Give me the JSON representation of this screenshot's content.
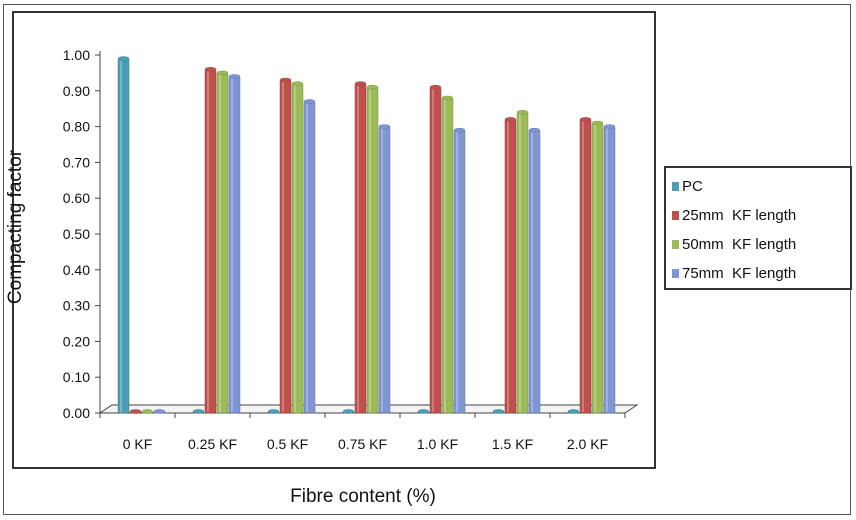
{
  "chart_data": {
    "type": "bar",
    "categories": [
      "0 KF",
      "0.25 KF",
      "0.5 KF",
      "0.75 KF",
      "1.0 KF",
      "1.5 KF",
      "2.0 KF"
    ],
    "series": [
      {
        "name": "PC",
        "color": "#4A9FB5",
        "values": [
          0.99,
          0,
          0,
          0,
          0,
          0,
          0
        ]
      },
      {
        "name": "25mm  KF length",
        "color": "#C0504D",
        "values": [
          0,
          0.96,
          0.93,
          0.92,
          0.91,
          0.82,
          0.82
        ]
      },
      {
        "name": "50mm  KF length",
        "color": "#9BBB59",
        "values": [
          0,
          0.95,
          0.92,
          0.91,
          0.88,
          0.84,
          0.81
        ]
      },
      {
        "name": "75mm  KF length",
        "color": "#8096D4",
        "values": [
          0,
          0.94,
          0.87,
          0.8,
          0.79,
          0.79,
          0.8
        ]
      }
    ],
    "xlabel": "Fibre content (%)",
    "ylabel": "Compacting factor",
    "ylim": [
      0,
      1.0
    ],
    "yticks": [
      "0.00",
      "0.10",
      "0.20",
      "0.30",
      "0.40",
      "0.50",
      "0.60",
      "0.70",
      "0.80",
      "0.90",
      "1.00"
    ],
    "legend_position": "right",
    "grid": false
  }
}
